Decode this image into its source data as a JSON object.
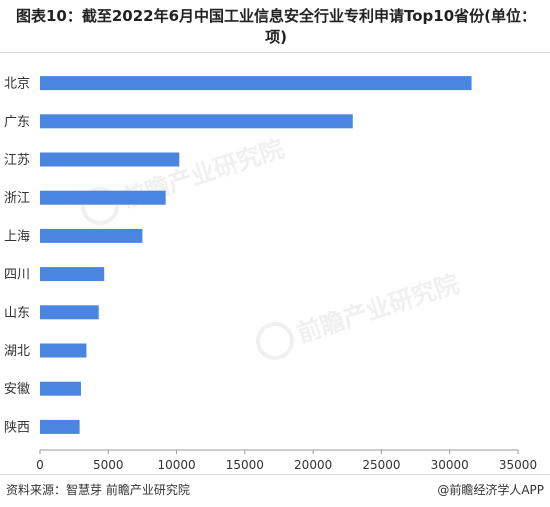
{
  "title": "图表10：截至2022年6月中国工业信息安全行业专利申请Top10省份(单位：项)",
  "watermark": "前瞻产业研究院",
  "footer": {
    "source": "资料来源：智慧芽 前瞻产业研究院",
    "credit": "@前瞻经济学人APP"
  },
  "colors": {
    "bar": "#4a86e0",
    "axis": "#999999",
    "text": "#333333"
  },
  "chart_data": {
    "type": "bar",
    "orientation": "horizontal",
    "categories": [
      "北京",
      "广东",
      "江苏",
      "浙江",
      "上海",
      "四川",
      "山东",
      "湖北",
      "安徽",
      "陕西"
    ],
    "values": [
      31600,
      22900,
      10200,
      9200,
      7500,
      4700,
      4300,
      3400,
      3000,
      2900
    ],
    "xlim": [
      0,
      35000
    ],
    "xticks": [
      0,
      5000,
      10000,
      15000,
      20000,
      25000,
      30000,
      35000
    ],
    "grid": false,
    "legend": "none"
  }
}
